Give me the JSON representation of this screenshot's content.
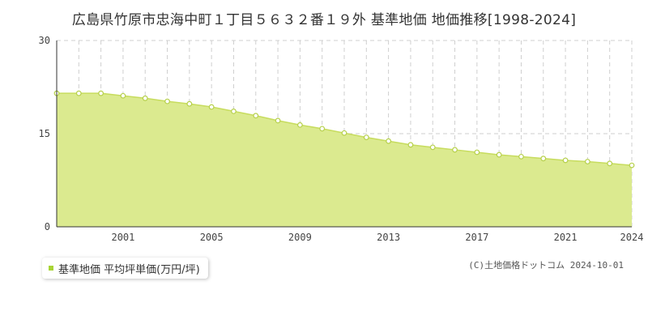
{
  "title": "広島県竹原市忠海中町１丁目５６３２番１９外 基準地価 地価推移[1998-2024]",
  "legend_label": "基準地価 平均坪単価(万円/坪)",
  "copyright": "(C)土地価格ドットコム 2024-10-01",
  "colors": {
    "fill": "#dbea8f",
    "line": "#c7dc5e",
    "marker_stroke": "#b6d04a",
    "accent": "#a8d435"
  },
  "chart_data": {
    "type": "area",
    "title": "広島県竹原市忠海中町１丁目５６３２番１９外 基準地価 地価推移[1998-2024]",
    "series": [
      {
        "name": "基準地価 平均坪単価(万円/坪)",
        "x": [
          1998,
          1999,
          2000,
          2001,
          2002,
          2003,
          2004,
          2005,
          2006,
          2007,
          2008,
          2009,
          2010,
          2011,
          2012,
          2013,
          2014,
          2015,
          2016,
          2017,
          2018,
          2019,
          2020,
          2021,
          2022,
          2023,
          2024
        ],
        "values": [
          21.5,
          21.5,
          21.5,
          21.1,
          20.7,
          20.2,
          19.8,
          19.3,
          18.6,
          17.9,
          17.1,
          16.4,
          15.8,
          15.1,
          14.4,
          13.8,
          13.2,
          12.8,
          12.4,
          12.0,
          11.6,
          11.3,
          11.0,
          10.7,
          10.5,
          10.2,
          9.9
        ]
      }
    ],
    "xlim": [
      1998,
      2024
    ],
    "ylim": [
      0,
      30
    ],
    "yticks": [
      0,
      15,
      30
    ],
    "xticks": [
      2001,
      2005,
      2009,
      2013,
      2017,
      2021,
      2024
    ],
    "grid": true
  }
}
